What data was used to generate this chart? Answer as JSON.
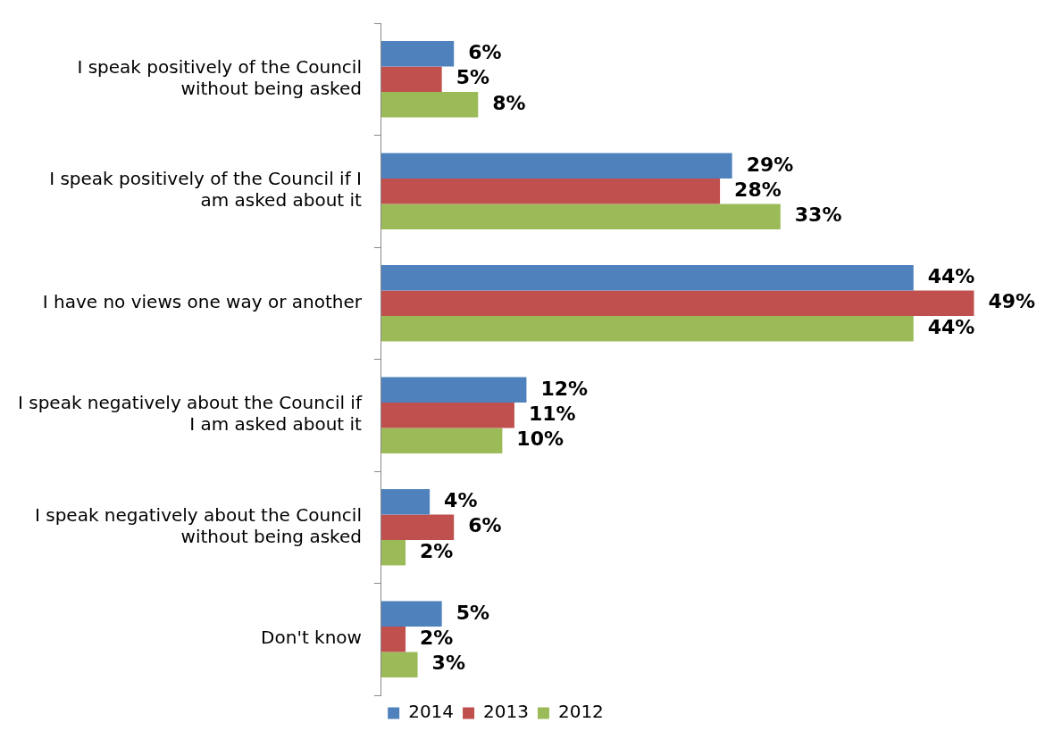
{
  "chart_data": {
    "type": "bar",
    "orientation": "horizontal",
    "legend": "bottom",
    "categories": [
      "I speak positively of the Council without being asked",
      "I speak positively of the Council if I am asked about it",
      "I have no views one way or another",
      "I speak negatively about the Council if I am asked about it",
      "I speak negatively about the Council without being asked",
      "Don't know"
    ],
    "series": [
      {
        "name": "2014",
        "color": "#4f81bd",
        "values": [
          6,
          29,
          44,
          12,
          4,
          5
        ],
        "value_labels": [
          "6%",
          "29%",
          "44%",
          "12%",
          "4%",
          "5%"
        ]
      },
      {
        "name": "2013",
        "color": "#c0504d",
        "values": [
          5,
          28,
          49,
          11,
          6,
          2
        ],
        "value_labels": [
          "5%",
          "28%",
          "49%",
          "11%",
          "6%",
          "2%"
        ]
      },
      {
        "name": "2012",
        "color": "#9bbb59",
        "values": [
          8,
          33,
          44,
          10,
          2,
          3
        ],
        "value_labels": [
          "8%",
          "33%",
          "44%",
          "10%",
          "2%",
          "3%"
        ]
      }
    ]
  }
}
